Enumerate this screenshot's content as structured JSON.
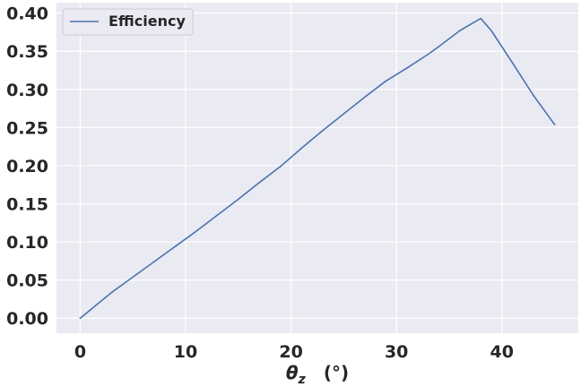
{
  "chart_data": {
    "type": "line",
    "title": "",
    "xlabel": "θz   (°)",
    "xlabel_parts": {
      "symbol": "θ",
      "subscript": "z",
      "unit": "(°)"
    },
    "ylabel": "",
    "xlim": [
      -2.25,
      47.25
    ],
    "ylim": [
      -0.0197,
      0.4137
    ],
    "xticks": [
      0,
      10,
      20,
      30,
      40
    ],
    "xtick_labels": [
      "0",
      "10",
      "20",
      "30",
      "40"
    ],
    "yticks": [
      0.0,
      0.05,
      0.1,
      0.15,
      0.2,
      0.25,
      0.3,
      0.35,
      0.4
    ],
    "ytick_labels": [
      "0.00",
      "0.05",
      "0.10",
      "0.15",
      "0.20",
      "0.25",
      "0.30",
      "0.35",
      "0.40"
    ],
    "grid": true,
    "legend_position": "top-left",
    "series": [
      {
        "name": "Efficiency",
        "color": "#4c72b0",
        "x": [
          0,
          3,
          5,
          7,
          9,
          11,
          13,
          15,
          17,
          19,
          21,
          23,
          25,
          27,
          29,
          31,
          33,
          34,
          36,
          38,
          39,
          41,
          43,
          45
        ],
        "y": [
          0.0,
          0.034,
          0.054,
          0.074,
          0.094,
          0.114,
          0.135,
          0.156,
          0.178,
          0.199,
          0.223,
          0.246,
          0.268,
          0.29,
          0.311,
          0.328,
          0.346,
          0.356,
          0.377,
          0.393,
          0.377,
          0.335,
          0.292,
          0.254
        ]
      }
    ]
  },
  "style": {
    "plot_background": "#eaeaf2",
    "grid_color": "#ffffff",
    "text_color": "#262626"
  }
}
